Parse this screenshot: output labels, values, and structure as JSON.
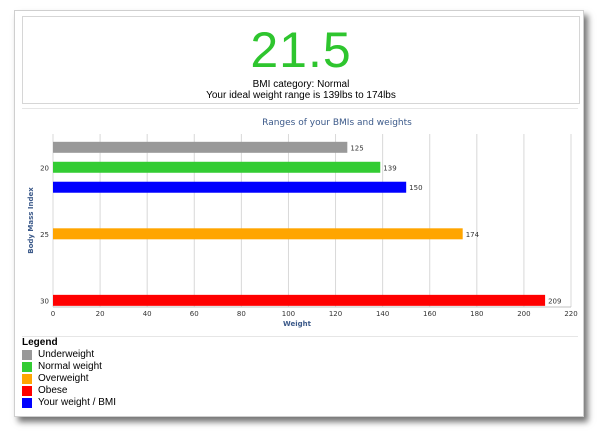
{
  "result": {
    "bmi": "21.5",
    "category_line": "BMI category: Normal",
    "range_line": "Your ideal weight range is 139lbs to 174lbs"
  },
  "legend": {
    "title": "Legend",
    "items": [
      {
        "label": "Underweight",
        "color": "#999999"
      },
      {
        "label": "Normal weight",
        "color": "#33cc33"
      },
      {
        "label": "Overweight",
        "color": "#ffa500"
      },
      {
        "label": "Obese",
        "color": "#ff0000"
      },
      {
        "label": "Your weight / BMI",
        "color": "#0000ff"
      }
    ]
  },
  "chart_data": {
    "type": "bar",
    "orientation": "horizontal",
    "title": "Ranges of your BMIs and weights",
    "xlabel": "Weight",
    "ylabel": "Body Mass Index",
    "xlim": [
      0,
      220
    ],
    "xticks": [
      0,
      20,
      40,
      60,
      80,
      100,
      120,
      140,
      160,
      180,
      200,
      220
    ],
    "ylim": [
      17.5,
      30.5
    ],
    "yticks": [
      20,
      25,
      30
    ],
    "grid": true,
    "bars": [
      {
        "name": "Underweight",
        "bmi": 18.5,
        "value": 125,
        "color": "#999999"
      },
      {
        "name": "Normal weight",
        "bmi": 20,
        "value": 139,
        "color": "#33cc33"
      },
      {
        "name": "Your weight / BMI",
        "bmi": 21.5,
        "value": 150,
        "color": "#0000ff"
      },
      {
        "name": "Overweight",
        "bmi": 25,
        "value": 174,
        "color": "#ffa500"
      },
      {
        "name": "Obese",
        "bmi": 30,
        "value": 209,
        "color": "#ff0000"
      }
    ]
  }
}
